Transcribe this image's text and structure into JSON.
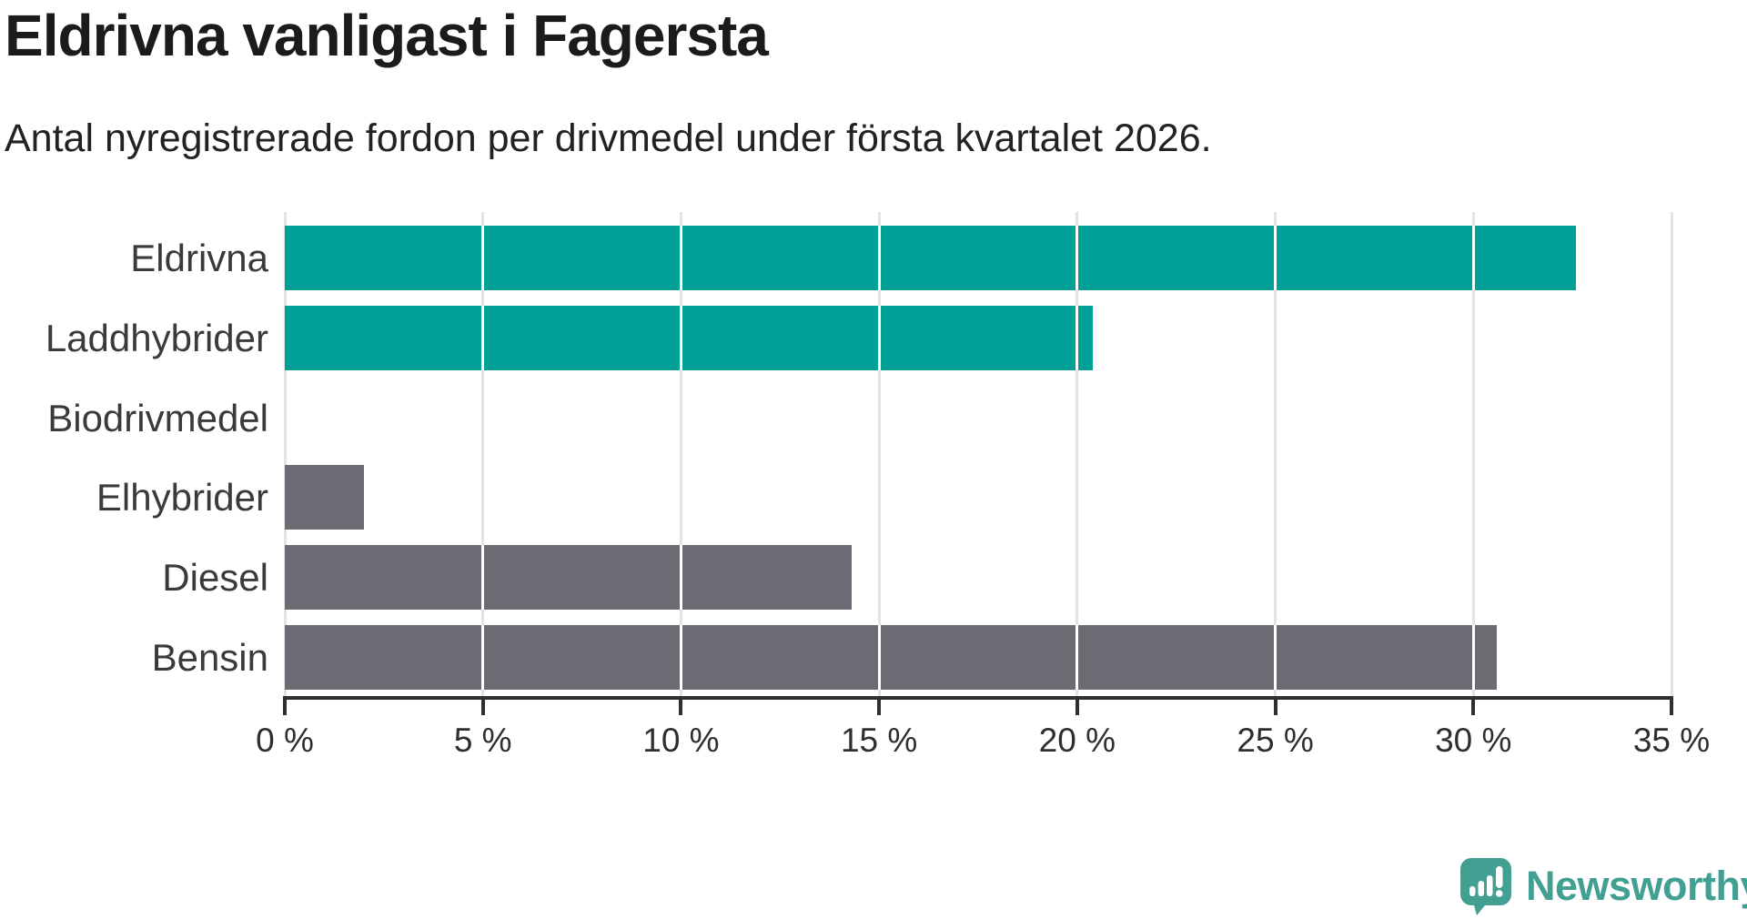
{
  "title": "Eldrivna vanligast i Fagersta",
  "subtitle": "Antal nyregistrerade fordon per drivmedel under första kvartalet 2026.",
  "logo": {
    "text": "Newsworthy",
    "color": "#42a093"
  },
  "colors": {
    "electric_bar": "#00a099",
    "other_bar": "#6c6b74",
    "gridline": "#e3e3e3",
    "axis": "#2f2f2f",
    "title_text": "#1b1b1b",
    "label_text": "#3a3a3a"
  },
  "chart_data": {
    "type": "bar",
    "orientation": "horizontal",
    "title": "Eldrivna vanligast i Fagersta",
    "subtitle": "Antal nyregistrerade fordon per drivmedel under första kvartalet 2026.",
    "categories": [
      "Eldrivna",
      "Laddhybrider",
      "Biodrivmedel",
      "Elhybrider",
      "Diesel",
      "Bensin"
    ],
    "values": [
      32.6,
      20.4,
      0,
      2,
      14.3,
      30.6
    ],
    "unit": "%",
    "bar_colors": [
      "#00a099",
      "#00a099",
      "#6c6b74",
      "#6c6b74",
      "#6c6b74",
      "#6c6b74"
    ],
    "x_tick_labels": [
      "0 %",
      "5 %",
      "10 %",
      "15 %",
      "20 %",
      "25 %",
      "30 %",
      "35 %"
    ],
    "x_tick_values": [
      0,
      5,
      10,
      15,
      20,
      25,
      30,
      35
    ],
    "xlim": [
      0,
      35
    ],
    "grid": true,
    "legend": false
  }
}
